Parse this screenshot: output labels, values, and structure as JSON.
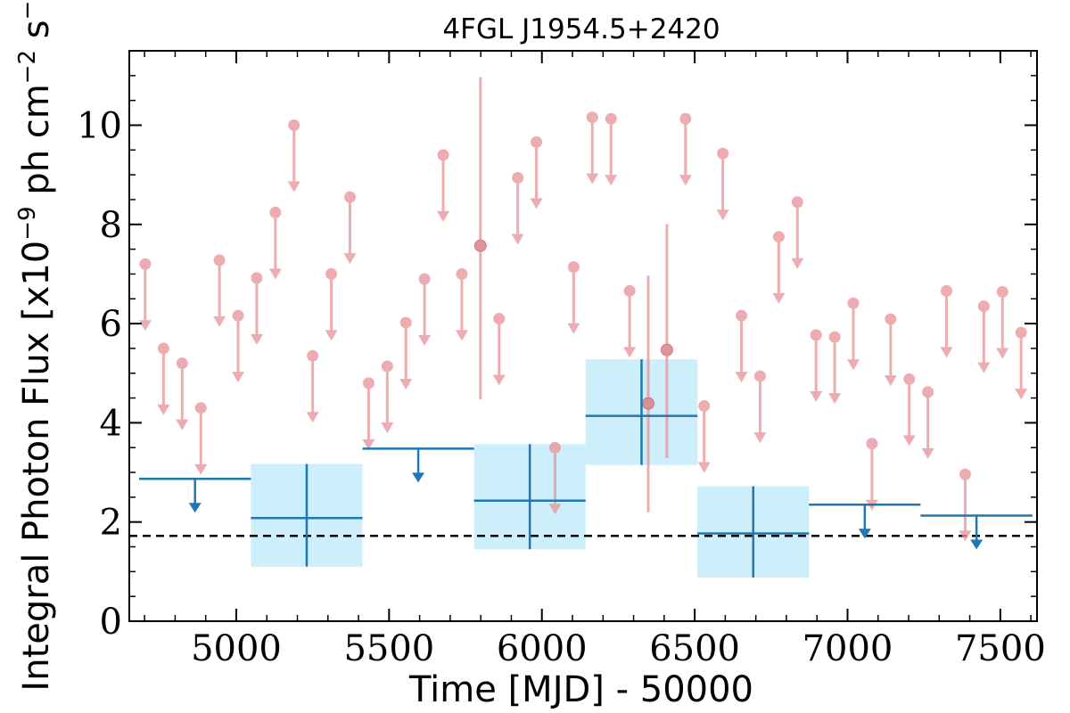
{
  "chart_data": {
    "type": "scatter",
    "title": "4FGL J1954.5+2420",
    "xlabel": "Time [MJD] - 50000",
    "ylabel": "Integral Photon Flux [x10^-9 ph cm^-2 s^-1]",
    "xlim": [
      4650,
      7620
    ],
    "ylim": [
      0,
      11.5
    ],
    "x_ticks": [
      5000,
      5500,
      6000,
      6500,
      7000,
      7500
    ],
    "y_ticks": [
      0,
      2,
      4,
      6,
      8,
      10
    ],
    "grid": false,
    "reference_line": {
      "y": 1.72,
      "style": "dashed",
      "color": "#000000"
    },
    "colors": {
      "yearly": "#1f77b4",
      "yearly_band": "#cdeefb",
      "monthly": "#e8969a"
    },
    "yearly_bins": {
      "upper_limits": [
        {
          "x0": 4682,
          "x1": 5048,
          "y": 2.87
        },
        {
          "x0": 5413,
          "x1": 5778,
          "y": 3.48
        },
        {
          "x0": 6874,
          "x1": 7239,
          "y": 2.35
        },
        {
          "x0": 7239,
          "x1": 7605,
          "y": 2.13
        }
      ],
      "detections": [
        {
          "x0": 5048,
          "x1": 5413,
          "y": 2.08,
          "ylo": 1.1,
          "yhi": 3.17
        },
        {
          "x0": 5778,
          "x1": 6143,
          "y": 2.43,
          "ylo": 1.45,
          "yhi": 3.57
        },
        {
          "x0": 6143,
          "x1": 6509,
          "y": 4.14,
          "ylo": 3.15,
          "yhi": 5.28
        },
        {
          "x0": 6509,
          "x1": 6874,
          "y": 1.77,
          "ylo": 0.88,
          "yhi": 2.72
        }
      ]
    },
    "monthly_upper_limits": [
      {
        "x": 4702,
        "y": 7.2
      },
      {
        "x": 4762,
        "y": 5.5
      },
      {
        "x": 4823,
        "y": 5.2
      },
      {
        "x": 4884,
        "y": 4.3
      },
      {
        "x": 4945,
        "y": 7.28
      },
      {
        "x": 5006,
        "y": 6.16
      },
      {
        "x": 5067,
        "y": 6.92
      },
      {
        "x": 5128,
        "y": 8.24
      },
      {
        "x": 5189,
        "y": 10.0
      },
      {
        "x": 5250,
        "y": 5.35
      },
      {
        "x": 5311,
        "y": 7.0
      },
      {
        "x": 5372,
        "y": 8.55
      },
      {
        "x": 5433,
        "y": 4.8
      },
      {
        "x": 5494,
        "y": 5.14
      },
      {
        "x": 5555,
        "y": 6.02
      },
      {
        "x": 5616,
        "y": 6.9
      },
      {
        "x": 5677,
        "y": 9.4
      },
      {
        "x": 5738,
        "y": 7.0
      },
      {
        "x": 5860,
        "y": 6.1
      },
      {
        "x": 5921,
        "y": 8.94
      },
      {
        "x": 5982,
        "y": 9.66
      },
      {
        "x": 6043,
        "y": 3.5
      },
      {
        "x": 6104,
        "y": 7.14
      },
      {
        "x": 6165,
        "y": 10.16
      },
      {
        "x": 6226,
        "y": 10.13
      },
      {
        "x": 6287,
        "y": 6.66
      },
      {
        "x": 6470,
        "y": 10.13
      },
      {
        "x": 6531,
        "y": 4.34
      },
      {
        "x": 6592,
        "y": 9.43
      },
      {
        "x": 6653,
        "y": 6.16
      },
      {
        "x": 6714,
        "y": 4.94
      },
      {
        "x": 6775,
        "y": 7.75
      },
      {
        "x": 6836,
        "y": 8.45
      },
      {
        "x": 6897,
        "y": 5.77
      },
      {
        "x": 6958,
        "y": 5.73
      },
      {
        "x": 7019,
        "y": 6.41
      },
      {
        "x": 7080,
        "y": 3.58
      },
      {
        "x": 7141,
        "y": 6.09
      },
      {
        "x": 7202,
        "y": 4.88
      },
      {
        "x": 7263,
        "y": 4.62
      },
      {
        "x": 7324,
        "y": 6.66
      },
      {
        "x": 7385,
        "y": 2.96
      },
      {
        "x": 7446,
        "y": 6.35
      },
      {
        "x": 7507,
        "y": 6.64
      },
      {
        "x": 7568,
        "y": 5.82
      }
    ],
    "monthly_detections": [
      {
        "x": 5799,
        "y": 7.57,
        "ylo": 4.47,
        "yhi": 10.97
      },
      {
        "x": 6348,
        "y": 4.39,
        "ylo": 2.2,
        "yhi": 6.97
      },
      {
        "x": 6409,
        "y": 5.47,
        "ylo": 3.29,
        "yhi": 8.01
      }
    ]
  }
}
